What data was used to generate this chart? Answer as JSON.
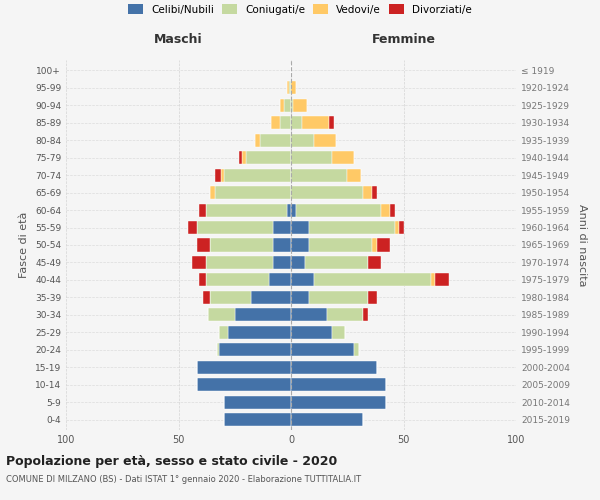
{
  "age_groups": [
    "0-4",
    "5-9",
    "10-14",
    "15-19",
    "20-24",
    "25-29",
    "30-34",
    "35-39",
    "40-44",
    "45-49",
    "50-54",
    "55-59",
    "60-64",
    "65-69",
    "70-74",
    "75-79",
    "80-84",
    "85-89",
    "90-94",
    "95-99",
    "100+"
  ],
  "birth_years": [
    "2015-2019",
    "2010-2014",
    "2005-2009",
    "2000-2004",
    "1995-1999",
    "1990-1994",
    "1985-1989",
    "1980-1984",
    "1975-1979",
    "1970-1974",
    "1965-1969",
    "1960-1964",
    "1955-1959",
    "1950-1954",
    "1945-1949",
    "1940-1944",
    "1935-1939",
    "1930-1934",
    "1925-1929",
    "1920-1924",
    "≤ 1919"
  ],
  "maschi": {
    "celibi": [
      30,
      30,
      42,
      42,
      32,
      28,
      25,
      18,
      10,
      8,
      8,
      8,
      2,
      0,
      0,
      0,
      0,
      0,
      0,
      0,
      0
    ],
    "coniugati": [
      0,
      0,
      0,
      0,
      1,
      4,
      12,
      18,
      28,
      30,
      28,
      34,
      36,
      34,
      30,
      20,
      14,
      5,
      3,
      1,
      0
    ],
    "vedovi": [
      0,
      0,
      0,
      0,
      0,
      0,
      0,
      0,
      0,
      0,
      0,
      0,
      0,
      2,
      1,
      2,
      2,
      4,
      2,
      1,
      0
    ],
    "divorziati": [
      0,
      0,
      0,
      0,
      0,
      0,
      0,
      3,
      3,
      6,
      6,
      4,
      3,
      0,
      3,
      1,
      0,
      0,
      0,
      0,
      0
    ]
  },
  "femmine": {
    "nubili": [
      32,
      42,
      42,
      38,
      28,
      18,
      16,
      8,
      10,
      6,
      8,
      8,
      2,
      0,
      0,
      0,
      0,
      0,
      0,
      0,
      0
    ],
    "coniugate": [
      0,
      0,
      0,
      0,
      2,
      6,
      16,
      26,
      52,
      28,
      28,
      38,
      38,
      32,
      25,
      18,
      10,
      5,
      1,
      0,
      0
    ],
    "vedove": [
      0,
      0,
      0,
      0,
      0,
      0,
      0,
      0,
      2,
      0,
      2,
      2,
      4,
      4,
      6,
      10,
      10,
      12,
      6,
      2,
      0
    ],
    "divorziate": [
      0,
      0,
      0,
      0,
      0,
      0,
      2,
      4,
      6,
      6,
      6,
      2,
      2,
      2,
      0,
      0,
      0,
      2,
      0,
      0,
      0
    ]
  },
  "colors": {
    "celibi": "#4472a8",
    "coniugati": "#c5d9a0",
    "vedovi": "#ffc966",
    "divorziati": "#cc2222"
  },
  "xlim": 100,
  "title": "Popolazione per età, sesso e stato civile - 2020",
  "subtitle": "COMUNE DI MILZANO (BS) - Dati ISTAT 1° gennaio 2020 - Elaborazione TUTTITALIA.IT",
  "ylabel_left": "Fasce di età",
  "ylabel_right": "Anni di nascita",
  "xlabel_maschi": "Maschi",
  "xlabel_femmine": "Femmine",
  "legend_labels": [
    "Celibi/Nubili",
    "Coniugati/e",
    "Vedovi/e",
    "Divorziati/e"
  ],
  "background_color": "#f5f5f5"
}
